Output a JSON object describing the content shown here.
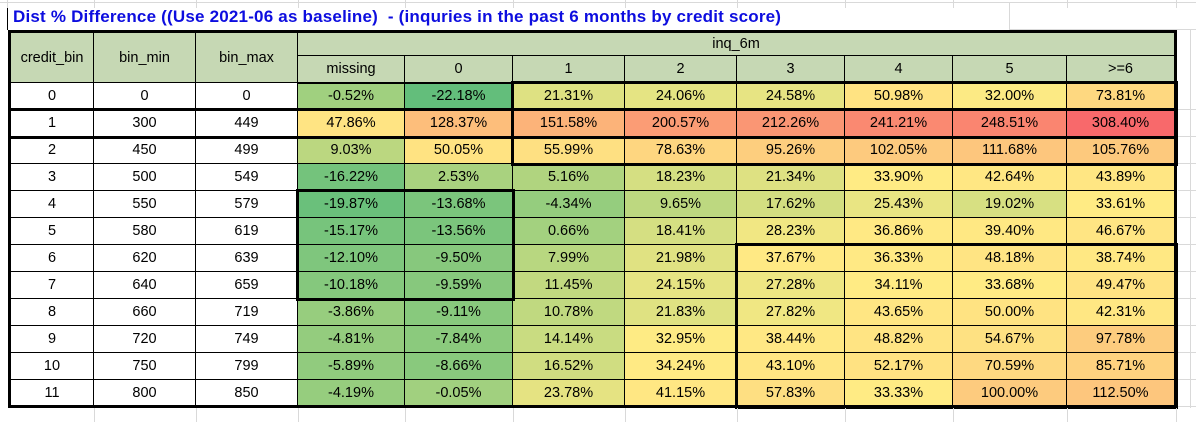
{
  "title": {
    "text": "Dist % Difference ((Use 2021-06 as baseline)  - (inquries in the past 6 months by credit score)",
    "color": "#0D0DDF"
  },
  "colors": {
    "header_fill": "#C6D8B4",
    "cell_border": "#000000",
    "plain_cell_fill": "#FFFFFF",
    "gridline": "#D9D9D9"
  },
  "heatmap_scale": {
    "min_value": -22.18,
    "mid_value": 33.14,
    "max_value": 308.4,
    "min_color": "#63BE7B",
    "mid_color": "#FFEB84",
    "max_color": "#F8696B"
  },
  "table": {
    "group_header": "inq_6m",
    "left_headers": [
      "credit_bin",
      "bin_min",
      "bin_max"
    ],
    "inq_headers": [
      "missing",
      "0",
      "1",
      "2",
      "3",
      "4",
      "5",
      ">=6"
    ],
    "rows": [
      {
        "credit_bin": "0",
        "bin_min": "0",
        "bin_max": "0",
        "values": [
          "-0.52%",
          "-22.18%",
          "21.31%",
          "24.06%",
          "24.58%",
          "50.98%",
          "32.00%",
          "73.81%"
        ]
      },
      {
        "credit_bin": "1",
        "bin_min": "300",
        "bin_max": "449",
        "values": [
          "47.86%",
          "128.37%",
          "151.58%",
          "200.57%",
          "212.26%",
          "241.21%",
          "248.51%",
          "308.40%"
        ]
      },
      {
        "credit_bin": "2",
        "bin_min": "450",
        "bin_max": "499",
        "values": [
          "9.03%",
          "50.05%",
          "55.99%",
          "78.63%",
          "95.26%",
          "102.05%",
          "111.68%",
          "105.76%"
        ]
      },
      {
        "credit_bin": "3",
        "bin_min": "500",
        "bin_max": "549",
        "values": [
          "-16.22%",
          "2.53%",
          "5.16%",
          "18.23%",
          "21.34%",
          "33.90%",
          "42.64%",
          "43.89%"
        ]
      },
      {
        "credit_bin": "4",
        "bin_min": "550",
        "bin_max": "579",
        "values": [
          "-19.87%",
          "-13.68%",
          "-4.34%",
          "9.65%",
          "17.62%",
          "25.43%",
          "19.02%",
          "33.61%"
        ]
      },
      {
        "credit_bin": "5",
        "bin_min": "580",
        "bin_max": "619",
        "values": [
          "-15.17%",
          "-13.56%",
          "0.66%",
          "18.41%",
          "28.23%",
          "36.86%",
          "39.40%",
          "46.67%"
        ]
      },
      {
        "credit_bin": "6",
        "bin_min": "620",
        "bin_max": "639",
        "values": [
          "-12.10%",
          "-9.50%",
          "7.99%",
          "21.98%",
          "37.67%",
          "36.33%",
          "48.18%",
          "38.74%"
        ]
      },
      {
        "credit_bin": "7",
        "bin_min": "640",
        "bin_max": "659",
        "values": [
          "-10.18%",
          "-9.59%",
          "11.45%",
          "24.15%",
          "27.28%",
          "34.11%",
          "33.68%",
          "49.47%"
        ]
      },
      {
        "credit_bin": "8",
        "bin_min": "660",
        "bin_max": "719",
        "values": [
          "-3.86%",
          "-9.11%",
          "10.78%",
          "21.83%",
          "27.82%",
          "43.65%",
          "50.00%",
          "42.31%"
        ]
      },
      {
        "credit_bin": "9",
        "bin_min": "720",
        "bin_max": "749",
        "values": [
          "-4.81%",
          "-7.84%",
          "14.14%",
          "32.95%",
          "38.44%",
          "48.82%",
          "54.67%",
          "97.78%"
        ]
      },
      {
        "credit_bin": "10",
        "bin_min": "750",
        "bin_max": "799",
        "values": [
          "-5.89%",
          "-8.66%",
          "16.52%",
          "34.24%",
          "43.10%",
          "52.17%",
          "70.59%",
          "85.71%"
        ]
      },
      {
        "credit_bin": "11",
        "bin_min": "800",
        "bin_max": "850",
        "values": [
          "-4.19%",
          "-0.05%",
          "23.78%",
          "41.15%",
          "57.83%",
          "33.33%",
          "100.00%",
          "112.50%"
        ]
      }
    ]
  },
  "highlight_boxes": [
    {
      "label": "rows 0-2 cols inq 1 to >=6",
      "row_start": 0,
      "row_end": 2,
      "col_start": 5,
      "col_end": 10
    },
    {
      "label": "entire row credit_bin 1",
      "row_start": 1,
      "row_end": 1,
      "col_start": 0,
      "col_end": 10
    },
    {
      "label": "rows 4-7 cols missing-0",
      "row_start": 4,
      "row_end": 7,
      "col_start": 3,
      "col_end": 4
    },
    {
      "label": "rows 6-11 cols inq 3 to >=6",
      "row_start": 6,
      "row_end": 11,
      "col_start": 7,
      "col_end": 10
    }
  ]
}
